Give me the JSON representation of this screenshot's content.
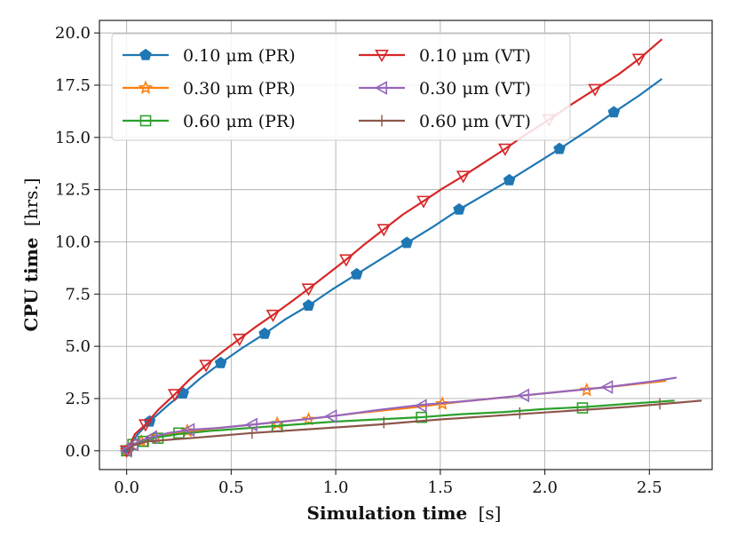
{
  "chart_data": {
    "type": "line",
    "title": "",
    "xlabel_bold": "Simulation time",
    "xlabel_unit": "[s]",
    "ylabel_bold": "CPU time",
    "ylabel_unit": "[hrs.]",
    "xlim": [
      -0.13,
      2.8
    ],
    "ylim": [
      -0.9,
      20.6
    ],
    "xticks": [
      0.0,
      0.5,
      1.0,
      1.5,
      2.0,
      2.5
    ],
    "xtick_labels": [
      "0.0",
      "0.5",
      "1.0",
      "1.5",
      "2.0",
      "2.5"
    ],
    "yticks": [
      0.0,
      2.5,
      5.0,
      7.5,
      10.0,
      12.5,
      15.0,
      17.5,
      20.0
    ],
    "ytick_labels": [
      "0.0",
      "2.5",
      "5.0",
      "7.5",
      "10.0",
      "12.5",
      "15.0",
      "17.5",
      "20.0"
    ],
    "grid": true,
    "legend_position": "top-left",
    "series": [
      {
        "name": "0.10 μm (PR)",
        "color": "#1f77b4",
        "marker": "pentagon",
        "x": [
          0,
          0.05,
          0.11,
          0.2,
          0.27,
          0.35,
          0.45,
          0.55,
          0.66,
          0.76,
          0.87,
          0.98,
          1.1,
          1.22,
          1.34,
          1.47,
          1.59,
          1.71,
          1.83,
          1.95,
          2.07,
          2.2,
          2.33,
          2.45,
          2.56
        ],
        "y": [
          0,
          0.75,
          1.4,
          2.2,
          2.75,
          3.45,
          4.2,
          4.9,
          5.6,
          6.3,
          6.95,
          7.7,
          8.45,
          9.2,
          9.95,
          10.75,
          11.55,
          12.25,
          12.95,
          13.7,
          14.45,
          15.3,
          16.2,
          17.0,
          17.8
        ],
        "markers_x": [
          0,
          0.11,
          0.27,
          0.45,
          0.66,
          0.87,
          1.1,
          1.34,
          1.59,
          1.83,
          2.07,
          2.33
        ],
        "markers_y": [
          0,
          1.4,
          2.75,
          4.2,
          5.6,
          6.95,
          8.45,
          9.95,
          11.55,
          12.95,
          14.45,
          16.2
        ]
      },
      {
        "name": "0.30 μm (PR)",
        "color": "#ff7f0e",
        "marker": "star",
        "x": [
          0,
          0.03,
          0.07,
          0.14,
          0.25,
          0.4,
          0.6,
          0.85,
          1.1,
          1.35,
          1.6,
          1.85,
          2.1,
          2.35,
          2.58
        ],
        "y": [
          0,
          0.3,
          0.45,
          0.65,
          0.85,
          1.05,
          1.25,
          1.5,
          1.8,
          2.05,
          2.35,
          2.6,
          2.85,
          3.1,
          3.35
        ],
        "markers_x": [
          0,
          0.07,
          0.14,
          0.29,
          0.72,
          0.87,
          1.51,
          2.2
        ],
        "markers_y": [
          0,
          0.45,
          0.65,
          0.95,
          1.3,
          1.5,
          2.25,
          2.9
        ]
      },
      {
        "name": "0.60 μm (PR)",
        "color": "#2ca02c",
        "marker": "square",
        "x": [
          0,
          0.03,
          0.08,
          0.15,
          0.25,
          0.4,
          0.6,
          0.8,
          1.0,
          1.2,
          1.4,
          1.6,
          1.8,
          2.0,
          2.2,
          2.4,
          2.62
        ],
        "y": [
          0,
          0.3,
          0.5,
          0.65,
          0.8,
          0.95,
          1.1,
          1.25,
          1.4,
          1.5,
          1.6,
          1.75,
          1.85,
          2.0,
          2.1,
          2.25,
          2.4
        ],
        "markers_x": [
          0,
          0.03,
          0.08,
          0.15,
          0.25,
          0.72,
          1.41,
          2.18
        ],
        "markers_y": [
          0,
          0.3,
          0.45,
          0.6,
          0.85,
          1.15,
          1.6,
          2.05
        ]
      },
      {
        "name": "0.10 μm (VT)",
        "color": "#d62728",
        "marker": "triangle-down",
        "x": [
          0,
          0.04,
          0.09,
          0.15,
          0.23,
          0.3,
          0.38,
          0.46,
          0.54,
          0.62,
          0.7,
          0.79,
          0.87,
          0.96,
          1.05,
          1.14,
          1.23,
          1.32,
          1.42,
          1.51,
          1.61,
          1.71,
          1.81,
          1.91,
          2.02,
          2.13,
          2.24,
          2.35,
          2.45,
          2.56
        ],
        "y": [
          0,
          0.8,
          1.25,
          1.95,
          2.7,
          3.4,
          4.1,
          4.75,
          5.35,
          5.95,
          6.5,
          7.15,
          7.75,
          8.45,
          9.15,
          9.9,
          10.6,
          11.3,
          11.95,
          12.55,
          13.15,
          13.8,
          14.45,
          15.15,
          15.85,
          16.6,
          17.3,
          18.0,
          18.75,
          19.7
        ],
        "markers_x": [
          0,
          0.09,
          0.23,
          0.38,
          0.54,
          0.7,
          0.87,
          1.05,
          1.23,
          1.42,
          1.61,
          1.81,
          2.02,
          2.24,
          2.45
        ],
        "markers_y": [
          0,
          1.25,
          2.7,
          4.1,
          5.35,
          6.5,
          7.75,
          9.15,
          10.6,
          11.95,
          13.15,
          14.45,
          15.85,
          17.3,
          18.75
        ]
      },
      {
        "name": "0.30 μm (VT)",
        "color": "#9467bd",
        "marker": "triangle-left",
        "x": [
          0,
          0.03,
          0.07,
          0.12,
          0.2,
          0.3,
          0.45,
          0.6,
          0.8,
          0.98,
          1.2,
          1.41,
          1.65,
          1.9,
          2.1,
          2.3,
          2.5,
          2.63
        ],
        "y": [
          0,
          0.3,
          0.5,
          0.65,
          0.85,
          1.0,
          1.1,
          1.25,
          1.45,
          1.65,
          1.95,
          2.2,
          2.4,
          2.65,
          2.85,
          3.05,
          3.3,
          3.5
        ],
        "markers_x": [
          0,
          0.03,
          0.12,
          0.3,
          0.6,
          0.98,
          1.41,
          1.9,
          2.3
        ],
        "markers_y": [
          0,
          0.3,
          0.65,
          1.0,
          1.25,
          1.65,
          2.15,
          2.65,
          3.05
        ]
      },
      {
        "name": "0.60 μm (VT)",
        "color": "#8c564b",
        "marker": "plus",
        "x": [
          0,
          0.03,
          0.1,
          0.3,
          0.6,
          0.9,
          1.2,
          1.5,
          1.8,
          2.1,
          2.4,
          2.75
        ],
        "y": [
          0,
          0.25,
          0.45,
          0.6,
          0.85,
          1.05,
          1.25,
          1.5,
          1.7,
          1.9,
          2.1,
          2.4
        ],
        "markers_x": [
          0.03,
          0.1,
          0.6,
          1.23,
          1.88,
          2.55
        ],
        "markers_y": [
          0.25,
          0.45,
          0.85,
          1.35,
          1.8,
          2.25
        ]
      }
    ]
  }
}
